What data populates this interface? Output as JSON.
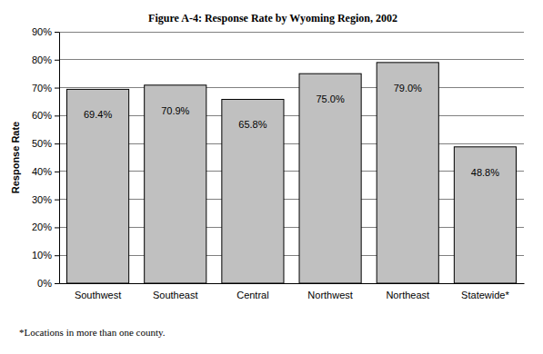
{
  "chart_data": {
    "type": "bar",
    "title": "Figure A-4: Response Rate by Wyoming Region, 2002",
    "y_label": "Response Rate",
    "categories": [
      "Southwest",
      "Southeast",
      "Central",
      "Northwest",
      "Northeast",
      "Statewide*"
    ],
    "values": [
      69.4,
      70.9,
      65.8,
      75.0,
      79.0,
      48.8
    ],
    "value_labels": [
      "69.4%",
      "70.9%",
      "65.8%",
      "75.0%",
      "79.0%",
      "48.8%"
    ],
    "color": "#c0c0c0",
    "ylim": [
      0,
      90
    ],
    "yticks": [
      {
        "value": 0,
        "label": "0%"
      },
      {
        "value": 10,
        "label": "10%"
      },
      {
        "value": 20,
        "label": "20%"
      },
      {
        "value": 30,
        "label": "30%"
      },
      {
        "value": 40,
        "label": "40%"
      },
      {
        "value": 50,
        "label": "50%"
      },
      {
        "value": 60,
        "label": "60%"
      },
      {
        "value": 70,
        "label": "70%"
      },
      {
        "value": 80,
        "label": "80%"
      },
      {
        "value": 90,
        "label": "90%"
      }
    ],
    "grid": true,
    "data_labels": true,
    "annotations": [
      "*Locations in more than one county."
    ]
  }
}
